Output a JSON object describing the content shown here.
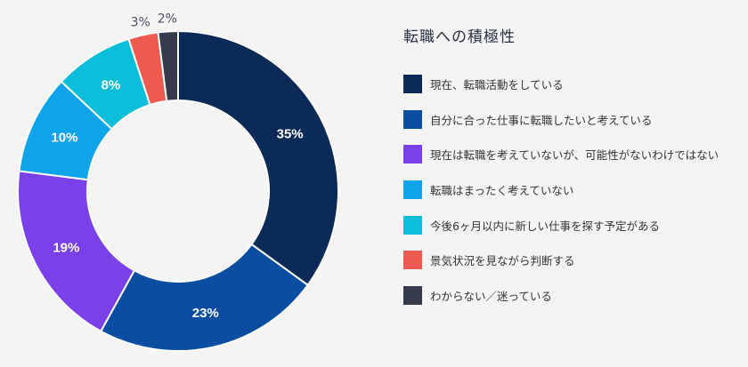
{
  "chart_data": {
    "type": "pie",
    "title": "転職への積極性",
    "categories": [
      "現在、転職活動をしている",
      "自分に合った仕事に転職したいと考えている",
      "現在は転職を考えていないが、可能性がないわけではない",
      "転職はまったく考えていない",
      "今後6ヶ月以内に新しい仕事を探す予定がある",
      "景気状況を見ながら判断する",
      "わからない／迷っている"
    ],
    "values": [
      35,
      23,
      19,
      10,
      8,
      3,
      2
    ],
    "value_labels": [
      "35%",
      "23%",
      "19%",
      "10%",
      "8%",
      "3%",
      "2%"
    ],
    "colors": [
      "#0b2a57",
      "#0a4ea2",
      "#7b41e8",
      "#0ea4ea",
      "#0abdd8",
      "#ef5a50",
      "#363b4c"
    ],
    "legend_position": "right"
  }
}
